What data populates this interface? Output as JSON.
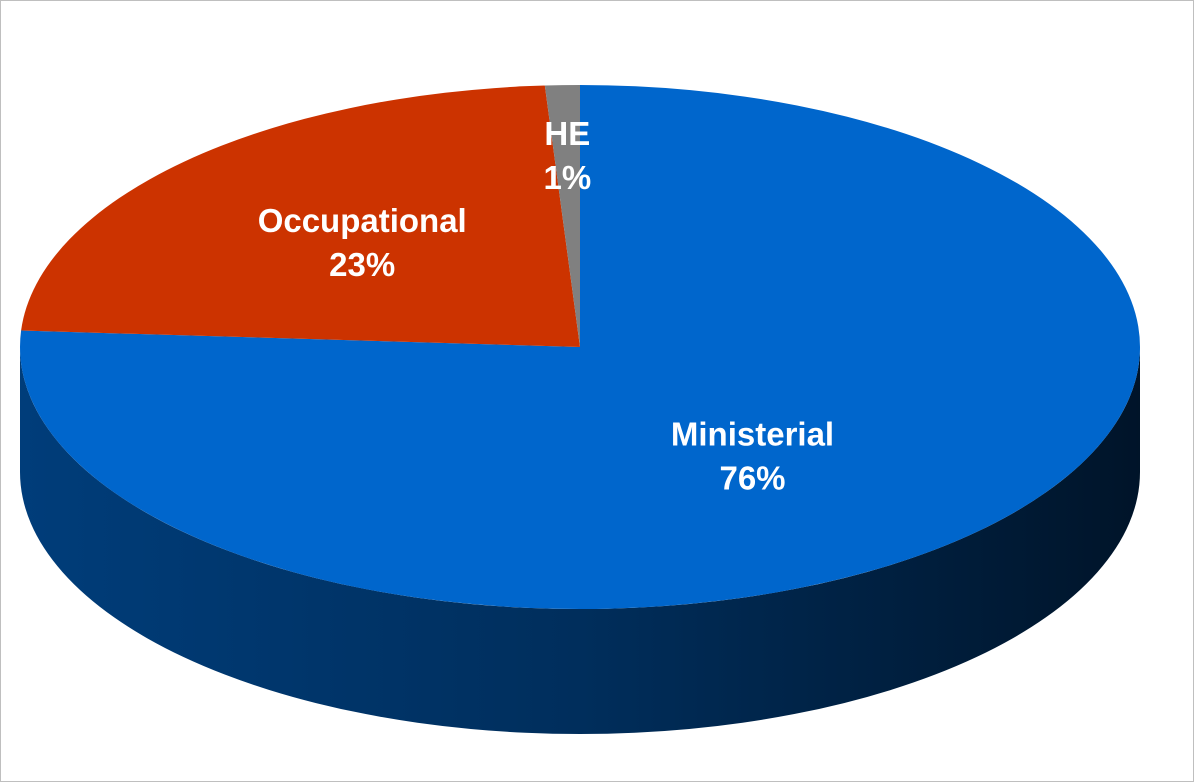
{
  "chart_data": {
    "type": "pie",
    "categories": [
      "Ministerial",
      "Occupational",
      "HE"
    ],
    "values": [
      76,
      23,
      1
    ],
    "value_labels": [
      "76%",
      "23%",
      "1%"
    ],
    "colors": [
      "#0066cc",
      "#cc3300",
      "#808080"
    ],
    "start_angle": 0,
    "direction": "clockwise",
    "three_d": true
  }
}
